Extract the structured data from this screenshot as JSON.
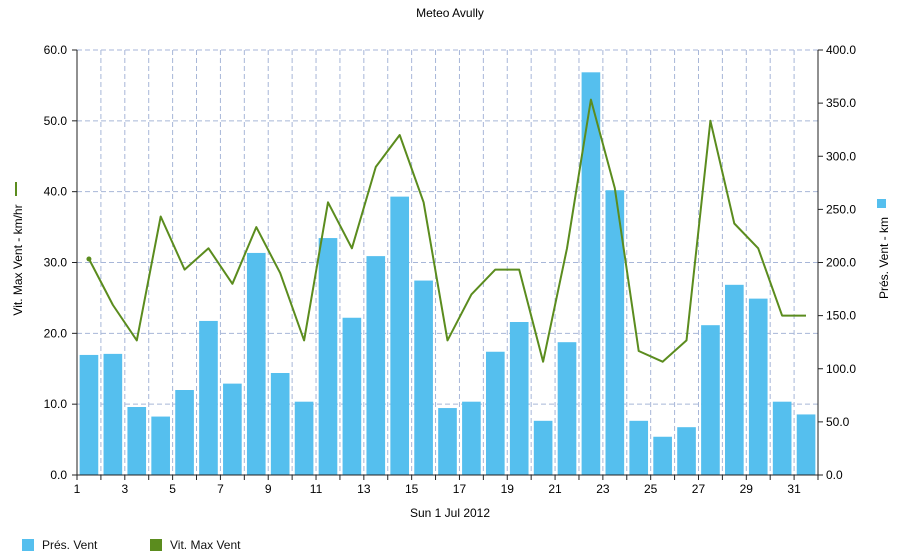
{
  "chart_data": {
    "type": "bar",
    "title": "Meteo  Avully",
    "xlabel": "Sun 1 Jul 2012",
    "ylabel_left": "Vit. Max Vent - km/hr",
    "ylabel_right": "Prés. Vent - km",
    "xlim": [
      1,
      32
    ],
    "ylim_left": [
      0,
      60
    ],
    "ylim_right": [
      0,
      400
    ],
    "y_ticks_left": [
      "0.0",
      "10.0",
      "20.0",
      "30.0",
      "40.0",
      "50.0",
      "60.0"
    ],
    "y_ticks_right": [
      "0.0",
      "50.0",
      "100.0",
      "150.0",
      "200.0",
      "250.0",
      "300.0",
      "350.0",
      "400.0"
    ],
    "x_ticks": [
      "1",
      "3",
      "5",
      "7",
      "9",
      "11",
      "13",
      "15",
      "17",
      "19",
      "21",
      "23",
      "25",
      "27",
      "29",
      "31"
    ],
    "x": [
      1,
      2,
      3,
      4,
      5,
      6,
      7,
      8,
      9,
      10,
      11,
      12,
      13,
      14,
      15,
      16,
      17,
      18,
      19,
      20,
      21,
      22,
      23,
      24,
      25,
      26,
      27,
      28,
      29,
      30,
      31
    ],
    "grid": true,
    "legend_position": "bottom-left",
    "series": [
      {
        "name": "Prés. Vent",
        "type": "bar",
        "axis": "right",
        "color": "#55bfee",
        "values": [
          113,
          114,
          64,
          55,
          80,
          145,
          86,
          209,
          96,
          69,
          223,
          148,
          206,
          262,
          183,
          63,
          69,
          116,
          144,
          51,
          125,
          379,
          268,
          51,
          36,
          45,
          141,
          179,
          166,
          69,
          57
        ]
      },
      {
        "name": "Vit. Max Vent",
        "type": "line",
        "axis": "left",
        "color": "#5b8c1e",
        "values": [
          30.5,
          24,
          19,
          36.5,
          29,
          32,
          27,
          35,
          28.5,
          19,
          38.5,
          32,
          43.5,
          48,
          38.5,
          19,
          25.5,
          29,
          29,
          16,
          32,
          53,
          40.5,
          17.5,
          16,
          19,
          50,
          35.5,
          32,
          22.5,
          22.5
        ]
      }
    ]
  }
}
